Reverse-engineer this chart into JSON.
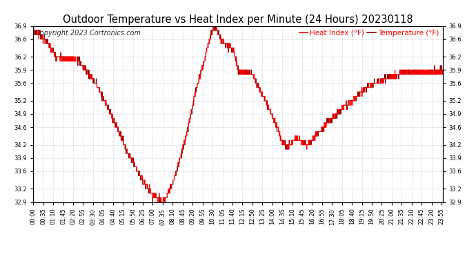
{
  "title": "Outdoor Temperature vs Heat Index per Minute (24 Hours) 20230118",
  "copyright": "Copyright 2023 Cortronics.com",
  "legend_heat": "Heat Index (°F)",
  "legend_temp": "Temperature (°F)",
  "heat_color": "#FF0000",
  "temp_color": "#8B0000",
  "ylim_min": 32.9,
  "ylim_max": 36.9,
  "yticks": [
    32.9,
    33.2,
    33.6,
    33.9,
    34.2,
    34.6,
    34.9,
    35.2,
    35.6,
    35.9,
    36.2,
    36.6,
    36.9
  ],
  "background_color": "#FFFFFF",
  "grid_color": "#888888",
  "title_fontsize": 10.5,
  "tick_fontsize": 6,
  "copyright_fontsize": 7,
  "legend_fontsize": 7.5,
  "keypoints": [
    [
      0,
      36.8
    ],
    [
      10,
      36.75
    ],
    [
      30,
      36.65
    ],
    [
      55,
      36.45
    ],
    [
      80,
      36.2
    ],
    [
      110,
      36.15
    ],
    [
      140,
      36.15
    ],
    [
      160,
      36.1
    ],
    [
      190,
      35.85
    ],
    [
      220,
      35.6
    ],
    [
      250,
      35.2
    ],
    [
      290,
      34.65
    ],
    [
      330,
      34.05
    ],
    [
      385,
      33.4
    ],
    [
      420,
      33.05
    ],
    [
      450,
      32.95
    ],
    [
      455,
      32.92
    ],
    [
      460,
      32.95
    ],
    [
      470,
      33.05
    ],
    [
      480,
      33.2
    ],
    [
      490,
      33.35
    ],
    [
      500,
      33.55
    ],
    [
      510,
      33.8
    ],
    [
      525,
      34.1
    ],
    [
      540,
      34.5
    ],
    [
      555,
      34.95
    ],
    [
      570,
      35.4
    ],
    [
      585,
      35.75
    ],
    [
      600,
      36.1
    ],
    [
      615,
      36.5
    ],
    [
      625,
      36.75
    ],
    [
      635,
      36.85
    ],
    [
      645,
      36.8
    ],
    [
      660,
      36.55
    ],
    [
      675,
      36.5
    ],
    [
      690,
      36.45
    ],
    [
      705,
      36.3
    ],
    [
      720,
      35.9
    ],
    [
      730,
      35.85
    ],
    [
      740,
      35.85
    ],
    [
      755,
      35.85
    ],
    [
      770,
      35.8
    ],
    [
      785,
      35.6
    ],
    [
      800,
      35.4
    ],
    [
      820,
      35.15
    ],
    [
      840,
      34.85
    ],
    [
      860,
      34.55
    ],
    [
      875,
      34.25
    ],
    [
      885,
      34.2
    ],
    [
      895,
      34.15
    ],
    [
      905,
      34.2
    ],
    [
      915,
      34.3
    ],
    [
      925,
      34.35
    ],
    [
      935,
      34.3
    ],
    [
      945,
      34.25
    ],
    [
      955,
      34.2
    ],
    [
      965,
      34.2
    ],
    [
      980,
      34.3
    ],
    [
      1000,
      34.45
    ],
    [
      1020,
      34.6
    ],
    [
      1040,
      34.75
    ],
    [
      1060,
      34.85
    ],
    [
      1080,
      35.0
    ],
    [
      1100,
      35.1
    ],
    [
      1120,
      35.2
    ],
    [
      1140,
      35.3
    ],
    [
      1160,
      35.45
    ],
    [
      1180,
      35.55
    ],
    [
      1200,
      35.6
    ],
    [
      1220,
      35.65
    ],
    [
      1240,
      35.7
    ],
    [
      1260,
      35.75
    ],
    [
      1280,
      35.8
    ],
    [
      1300,
      35.85
    ],
    [
      1320,
      35.85
    ],
    [
      1340,
      35.85
    ],
    [
      1360,
      35.85
    ],
    [
      1380,
      35.85
    ],
    [
      1400,
      35.85
    ],
    [
      1420,
      35.85
    ],
    [
      1439,
      35.9
    ]
  ],
  "tick_interval": 35
}
